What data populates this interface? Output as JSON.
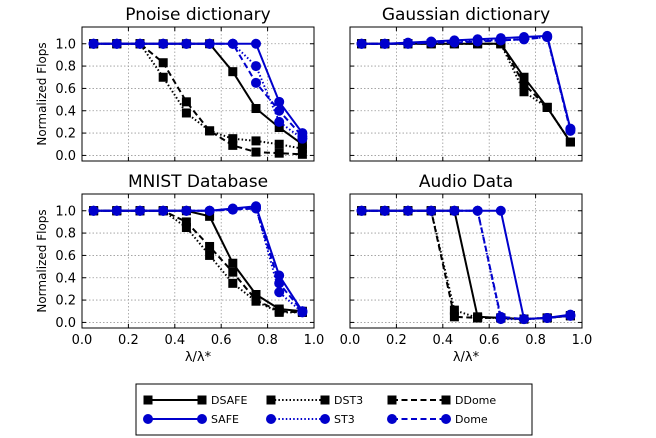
{
  "chart_data": {
    "type": "line",
    "ylabel": "Normalized Flops",
    "xlabel": "λ/λ*",
    "xlim": [
      0,
      1
    ],
    "ylim": [
      -0.05,
      1.15
    ],
    "xticks": [
      "0.0",
      "0.2",
      "0.4",
      "0.6",
      "0.8",
      "1.0"
    ],
    "yticks": [
      "0.0",
      "0.2",
      "0.4",
      "0.6",
      "0.8",
      "1.0"
    ],
    "grid": true,
    "legend": {
      "placement": "bottom-center",
      "entries": [
        {
          "name": "DSAFE",
          "color": "#000000",
          "dash": "solid",
          "marker": "square"
        },
        {
          "name": "DST3",
          "color": "#000000",
          "dash": "dotted",
          "marker": "square"
        },
        {
          "name": "DDome",
          "color": "#000000",
          "dash": "dashed",
          "marker": "square"
        },
        {
          "name": "SAFE",
          "color": "#0000cc",
          "dash": "solid",
          "marker": "circle"
        },
        {
          "name": "ST3",
          "color": "#0000cc",
          "dash": "dotted",
          "marker": "circle"
        },
        {
          "name": "Dome",
          "color": "#0000cc",
          "dash": "dashed",
          "marker": "circle"
        }
      ]
    },
    "panels": [
      {
        "title": "Pnoise dictionary",
        "x": [
          0.05,
          0.15,
          0.25,
          0.35,
          0.45,
          0.55,
          0.65,
          0.75,
          0.85,
          0.95
        ],
        "series": [
          {
            "name": "DSAFE",
            "values": [
              1.0,
              1.0,
              1.0,
              1.0,
              1.0,
              1.0,
              0.75,
              0.42,
              0.25,
              0.1
            ]
          },
          {
            "name": "DST3",
            "values": [
              1.0,
              1.0,
              1.0,
              0.7,
              0.38,
              0.22,
              0.15,
              0.13,
              0.1,
              0.06
            ]
          },
          {
            "name": "DDome",
            "values": [
              1.0,
              1.0,
              1.0,
              0.83,
              0.48,
              0.22,
              0.09,
              0.03,
              0.02,
              0.01
            ]
          },
          {
            "name": "SAFE",
            "values": [
              1.0,
              1.0,
              1.0,
              1.0,
              1.0,
              1.0,
              1.0,
              1.0,
              0.48,
              0.2
            ]
          },
          {
            "name": "ST3",
            "values": [
              1.0,
              1.0,
              1.0,
              1.0,
              1.0,
              1.0,
              1.0,
              0.8,
              0.3,
              0.15
            ]
          },
          {
            "name": "Dome",
            "values": [
              1.0,
              1.0,
              1.0,
              1.0,
              1.0,
              1.0,
              1.0,
              0.65,
              0.4,
              0.17
            ]
          }
        ]
      },
      {
        "title": "Gaussian dictionary",
        "x": [
          0.05,
          0.15,
          0.25,
          0.35,
          0.45,
          0.55,
          0.65,
          0.75,
          0.85,
          0.95
        ],
        "series": [
          {
            "name": "DSAFE",
            "values": [
              1.0,
              1.0,
              1.0,
              1.0,
              1.0,
              1.0,
              1.0,
              0.7,
              0.43,
              0.12
            ]
          },
          {
            "name": "DST3",
            "values": [
              1.0,
              1.0,
              1.0,
              1.0,
              1.0,
              1.0,
              1.0,
              0.57,
              0.43,
              0.12
            ]
          },
          {
            "name": "DDome",
            "values": [
              1.0,
              1.0,
              1.0,
              1.0,
              1.0,
              1.0,
              1.0,
              0.64,
              0.43,
              0.12
            ]
          },
          {
            "name": "SAFE",
            "values": [
              1.0,
              1.0,
              1.01,
              1.02,
              1.03,
              1.04,
              1.05,
              1.06,
              1.07,
              0.24
            ]
          },
          {
            "name": "ST3",
            "values": [
              1.0,
              1.0,
              1.0,
              1.01,
              1.02,
              1.03,
              1.03,
              1.04,
              1.06,
              0.23
            ]
          },
          {
            "name": "Dome",
            "values": [
              1.0,
              1.0,
              1.0,
              1.01,
              1.01,
              1.02,
              1.03,
              1.04,
              1.06,
              0.22
            ]
          }
        ]
      },
      {
        "title": "MNIST Database",
        "x": [
          0.05,
          0.15,
          0.25,
          0.35,
          0.45,
          0.55,
          0.65,
          0.75,
          0.85,
          0.95
        ],
        "series": [
          {
            "name": "DSAFE",
            "values": [
              1.0,
              1.0,
              1.0,
              1.0,
              1.0,
              0.95,
              0.53,
              0.25,
              0.12,
              0.1
            ]
          },
          {
            "name": "DST3",
            "values": [
              1.0,
              1.0,
              1.0,
              1.0,
              0.85,
              0.6,
              0.35,
              0.19,
              0.09,
              0.09
            ]
          },
          {
            "name": "DDome",
            "values": [
              1.0,
              1.0,
              1.0,
              1.0,
              0.9,
              0.68,
              0.45,
              0.2,
              0.1,
              0.09
            ]
          },
          {
            "name": "SAFE",
            "values": [
              1.0,
              1.0,
              1.0,
              1.0,
              1.0,
              1.0,
              1.02,
              1.04,
              0.42,
              0.1
            ]
          },
          {
            "name": "ST3",
            "values": [
              1.0,
              1.0,
              1.0,
              1.0,
              1.0,
              1.0,
              1.01,
              1.03,
              0.27,
              0.09
            ]
          },
          {
            "name": "Dome",
            "values": [
              1.0,
              1.0,
              1.0,
              1.0,
              1.0,
              1.0,
              1.01,
              1.02,
              0.35,
              0.1
            ]
          }
        ]
      },
      {
        "title": "Audio Data",
        "x": [
          0.05,
          0.15,
          0.25,
          0.35,
          0.45,
          0.55,
          0.65,
          0.75,
          0.85,
          0.95
        ],
        "series": [
          {
            "name": "DSAFE",
            "values": [
              1.0,
              1.0,
              1.0,
              1.0,
              1.0,
              0.05,
              0.04,
              0.03,
              0.04,
              0.06
            ]
          },
          {
            "name": "DST3",
            "values": [
              1.0,
              1.0,
              1.0,
              1.0,
              0.11,
              0.04,
              0.04,
              0.03,
              0.04,
              0.06
            ]
          },
          {
            "name": "DDome",
            "values": [
              1.0,
              1.0,
              1.0,
              1.0,
              0.05,
              0.04,
              0.04,
              0.03,
              0.04,
              0.06
            ]
          },
          {
            "name": "SAFE",
            "values": [
              1.0,
              1.0,
              1.0,
              1.0,
              1.0,
              1.0,
              1.0,
              0.03,
              0.04,
              0.07
            ]
          },
          {
            "name": "ST3",
            "values": [
              1.0,
              1.0,
              1.0,
              1.0,
              1.0,
              1.0,
              0.03,
              0.03,
              0.04,
              0.06
            ]
          },
          {
            "name": "Dome",
            "values": [
              1.0,
              1.0,
              1.0,
              1.0,
              1.0,
              1.0,
              0.05,
              0.03,
              0.04,
              0.06
            ]
          }
        ]
      }
    ]
  }
}
